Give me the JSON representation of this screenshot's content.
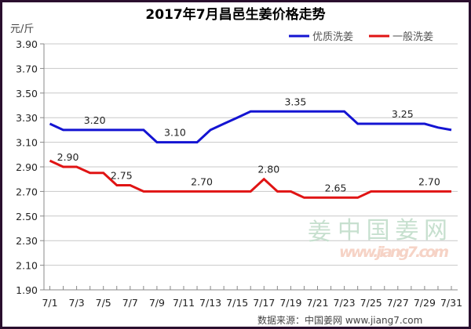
{
  "title": "2017年7月昌邑生姜价格走势",
  "unit": "元/斤",
  "legend": [
    {
      "name": "优质洗姜",
      "color": "#1414d2"
    },
    {
      "name": "一般洗姜",
      "color": "#e01414"
    }
  ],
  "watermark": {
    "logo_char": "姜",
    "brand": "中国姜网",
    "url": "www.jiang7.com"
  },
  "footer": "数据来源：中国姜网 www.jiang7.com",
  "chart_data": {
    "type": "line",
    "title": "2017年7月昌邑生姜价格走势",
    "xlabel": "",
    "ylabel": "元/斤",
    "ylim": [
      1.9,
      3.9
    ],
    "yticks": [
      "3.90",
      "3.70",
      "3.50",
      "3.30",
      "3.10",
      "2.90",
      "2.70",
      "2.50",
      "2.30",
      "2.10",
      "1.90"
    ],
    "xticks": [
      "7/1",
      "7/3",
      "7/5",
      "7/7",
      "7/9",
      "7/11",
      "7/13",
      "7/15",
      "7/17",
      "7/19",
      "7/21",
      "7/23",
      "7/25",
      "7/27",
      "7/29",
      "7/31"
    ],
    "grid": true,
    "legend_position": "top-right",
    "x": [
      "7/1",
      "7/2",
      "7/3",
      "7/4",
      "7/5",
      "7/6",
      "7/7",
      "7/8",
      "7/9",
      "7/10",
      "7/11",
      "7/12",
      "7/13",
      "7/14",
      "7/15",
      "7/16",
      "7/17",
      "7/18",
      "7/19",
      "7/20",
      "7/21",
      "7/22",
      "7/23",
      "7/24",
      "7/25",
      "7/26",
      "7/27",
      "7/28",
      "7/29",
      "7/30",
      "7/31"
    ],
    "series": [
      {
        "name": "优质洗姜",
        "color": "#1414d2",
        "values": [
          3.25,
          3.2,
          3.2,
          3.2,
          3.2,
          3.2,
          3.2,
          3.2,
          3.1,
          3.1,
          3.1,
          3.1,
          3.2,
          3.25,
          3.3,
          3.35,
          3.35,
          3.35,
          3.35,
          3.35,
          3.35,
          3.35,
          3.35,
          3.25,
          3.25,
          3.25,
          3.25,
          3.25,
          3.25,
          3.22,
          3.2
        ]
      },
      {
        "name": "一般洗姜",
        "color": "#e01414",
        "values": [
          2.95,
          2.9,
          2.9,
          2.85,
          2.85,
          2.75,
          2.75,
          2.7,
          2.7,
          2.7,
          2.7,
          2.7,
          2.7,
          2.7,
          2.7,
          2.7,
          2.8,
          2.7,
          2.7,
          2.65,
          2.65,
          2.65,
          2.65,
          2.65,
          2.7,
          2.7,
          2.7,
          2.7,
          2.7,
          2.7,
          2.7
        ]
      }
    ],
    "annotations": [
      {
        "text": "3.20",
        "series": "优质洗姜",
        "x": "7/4"
      },
      {
        "text": "3.10",
        "series": "优质洗姜",
        "x": "7/10"
      },
      {
        "text": "3.35",
        "series": "优质洗姜",
        "x": "7/19"
      },
      {
        "text": "3.25",
        "series": "优质洗姜",
        "x": "7/27"
      },
      {
        "text": "2.90",
        "series": "一般洗姜",
        "x": "7/2"
      },
      {
        "text": "2.75",
        "series": "一般洗姜",
        "x": "7/6"
      },
      {
        "text": "2.70",
        "series": "一般洗姜",
        "x": "7/12"
      },
      {
        "text": "2.80",
        "series": "一般洗姜",
        "x": "7/17"
      },
      {
        "text": "2.65",
        "series": "一般洗姜",
        "x": "7/22"
      },
      {
        "text": "2.70",
        "series": "一般洗姜",
        "x": "7/29"
      }
    ]
  }
}
